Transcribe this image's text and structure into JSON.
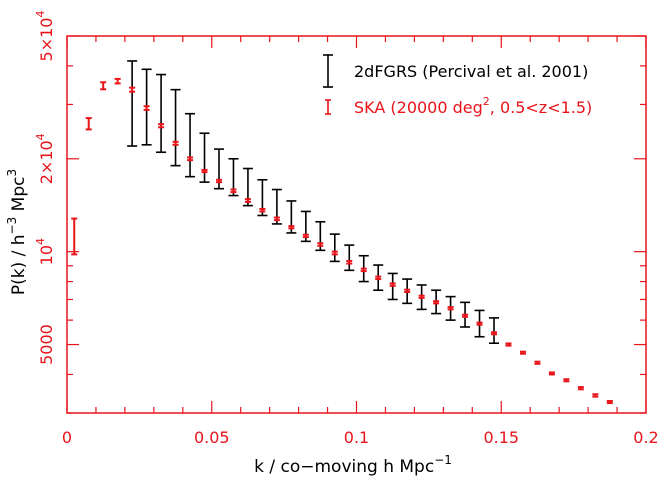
{
  "chart_data": {
    "type": "scatter",
    "title": "",
    "xlabel": "k / co−moving h Mpc",
    "xlabel_sup": "−1",
    "ylabel": "P(k) / h",
    "ylabel_sup": "−3",
    "ylabel_mid": " Mpc",
    "ylabel_sup2": "3",
    "xlim": [
      0,
      0.2
    ],
    "ylim": [
      3000,
      50000
    ],
    "yscale": "log",
    "x_ticks": [
      0,
      0.05,
      0.1,
      0.15,
      0.2
    ],
    "x_tick_labels": [
      "0",
      "0.05",
      "0.1",
      "0.15",
      "0.2"
    ],
    "y_ticks": [
      5000,
      10000,
      20000,
      50000
    ],
    "y_tick_labels": [
      {
        "base": "5000",
        "sup": ""
      },
      {
        "base": "10",
        "sup": "4"
      },
      {
        "base": "2×10",
        "sup": "4"
      },
      {
        "base": "5×10",
        "sup": "4"
      }
    ],
    "legend_position": "top-right",
    "colors": {
      "axis": "#e8141a",
      "black_series": "#000000",
      "red_series": "#e8141a"
    },
    "series": [
      {
        "name": "2dFGRS (Percival et al. 2001)",
        "color": "#000000",
        "points": [
          {
            "x": 0.0225,
            "y_low": 22000,
            "y_high": 41500
          },
          {
            "x": 0.0275,
            "y_low": 22200,
            "y_high": 39000
          },
          {
            "x": 0.0325,
            "y_low": 21000,
            "y_high": 37500
          },
          {
            "x": 0.0375,
            "y_low": 19000,
            "y_high": 33500
          },
          {
            "x": 0.0425,
            "y_low": 17500,
            "y_high": 28000
          },
          {
            "x": 0.0475,
            "y_low": 16800,
            "y_high": 24200
          },
          {
            "x": 0.0525,
            "y_low": 16000,
            "y_high": 21500
          },
          {
            "x": 0.0575,
            "y_low": 15200,
            "y_high": 20000
          },
          {
            "x": 0.0625,
            "y_low": 14100,
            "y_high": 18600
          },
          {
            "x": 0.0675,
            "y_low": 13100,
            "y_high": 17100
          },
          {
            "x": 0.0725,
            "y_low": 12300,
            "y_high": 15900
          },
          {
            "x": 0.0775,
            "y_low": 11500,
            "y_high": 14600
          },
          {
            "x": 0.0825,
            "y_low": 10800,
            "y_high": 13500
          },
          {
            "x": 0.0875,
            "y_low": 10100,
            "y_high": 12500
          },
          {
            "x": 0.0925,
            "y_low": 9300,
            "y_high": 11400
          },
          {
            "x": 0.0975,
            "y_low": 8700,
            "y_high": 10500
          },
          {
            "x": 0.1025,
            "y_low": 8000,
            "y_high": 9700
          },
          {
            "x": 0.1075,
            "y_low": 7500,
            "y_high": 9050
          },
          {
            "x": 0.1125,
            "y_low": 7000,
            "y_high": 8500
          },
          {
            "x": 0.1175,
            "y_low": 6800,
            "y_high": 8150
          },
          {
            "x": 0.1225,
            "y_low": 6500,
            "y_high": 7800
          },
          {
            "x": 0.1275,
            "y_low": 6300,
            "y_high": 7500
          },
          {
            "x": 0.1325,
            "y_low": 6000,
            "y_high": 7150
          },
          {
            "x": 0.1375,
            "y_low": 5700,
            "y_high": 6850
          },
          {
            "x": 0.1425,
            "y_low": 5300,
            "y_high": 6450
          },
          {
            "x": 0.1475,
            "y_low": 5050,
            "y_high": 6100
          }
        ]
      },
      {
        "name": "SKA (20000 deg",
        "name_sup": "2",
        "name_rest": ", 0.5<z<1.5)",
        "color": "#e8141a",
        "points": [
          {
            "x": 0.0025,
            "y_low": 9800,
            "y_high": 12800
          },
          {
            "x": 0.0075,
            "y_low": 24900,
            "y_high": 27100
          },
          {
            "x": 0.0125,
            "y_low": 33600,
            "y_high": 35400
          },
          {
            "x": 0.0175,
            "y_low": 35100,
            "y_high": 36300
          },
          {
            "x": 0.0225,
            "y_low": 33000,
            "y_high": 34000
          },
          {
            "x": 0.0275,
            "y_low": 28800,
            "y_high": 29600
          },
          {
            "x": 0.0325,
            "y_low": 25300,
            "y_high": 25900
          },
          {
            "x": 0.0375,
            "y_low": 22200,
            "y_high": 22700
          },
          {
            "x": 0.0425,
            "y_low": 19800,
            "y_high": 20200
          },
          {
            "x": 0.0475,
            "y_low": 18100,
            "y_high": 18400
          },
          {
            "x": 0.0525,
            "y_low": 16800,
            "y_high": 17100
          },
          {
            "x": 0.0575,
            "y_low": 15600,
            "y_high": 15900
          },
          {
            "x": 0.0625,
            "y_low": 14500,
            "y_high": 14800
          },
          {
            "x": 0.0675,
            "y_low": 13500,
            "y_high": 13750
          },
          {
            "x": 0.0725,
            "y_low": 12650,
            "y_high": 12900
          },
          {
            "x": 0.0775,
            "y_low": 11900,
            "y_high": 12100
          },
          {
            "x": 0.0825,
            "y_low": 11150,
            "y_high": 11350
          },
          {
            "x": 0.0875,
            "y_low": 10450,
            "y_high": 10650
          },
          {
            "x": 0.0925,
            "y_low": 9800,
            "y_high": 10000
          },
          {
            "x": 0.0975,
            "y_low": 9150,
            "y_high": 9330
          },
          {
            "x": 0.1025,
            "y_low": 8650,
            "y_high": 8810
          },
          {
            "x": 0.1075,
            "y_low": 8150,
            "y_high": 8300
          },
          {
            "x": 0.1125,
            "y_low": 7750,
            "y_high": 7890
          },
          {
            "x": 0.1175,
            "y_low": 7400,
            "y_high": 7530
          },
          {
            "x": 0.1225,
            "y_low": 7080,
            "y_high": 7200
          },
          {
            "x": 0.1275,
            "y_low": 6800,
            "y_high": 6910
          },
          {
            "x": 0.1325,
            "y_low": 6500,
            "y_high": 6610
          },
          {
            "x": 0.1375,
            "y_low": 6150,
            "y_high": 6250
          },
          {
            "x": 0.1425,
            "y_low": 5800,
            "y_high": 5890
          },
          {
            "x": 0.1475,
            "y_low": 5400,
            "y_high": 5480
          },
          {
            "x": 0.1525,
            "y_low": 4960,
            "y_high": 5040
          },
          {
            "x": 0.1575,
            "y_low": 4670,
            "y_high": 4740
          },
          {
            "x": 0.1625,
            "y_low": 4330,
            "y_high": 4400
          },
          {
            "x": 0.1675,
            "y_low": 4000,
            "y_high": 4060
          },
          {
            "x": 0.1725,
            "y_low": 3800,
            "y_high": 3860
          },
          {
            "x": 0.1775,
            "y_low": 3580,
            "y_high": 3640
          },
          {
            "x": 0.1825,
            "y_low": 3390,
            "y_high": 3450
          },
          {
            "x": 0.1875,
            "y_low": 3230,
            "y_high": 3280
          }
        ]
      }
    ]
  }
}
